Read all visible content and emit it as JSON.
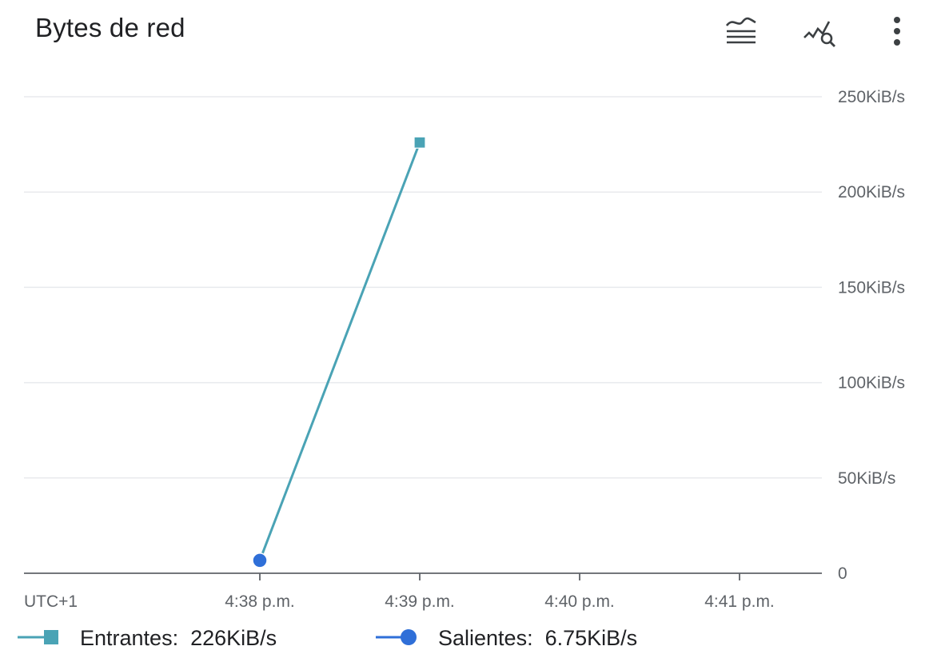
{
  "card": {
    "title": "Bytes de red",
    "toolbar": {
      "legend_icon": "legend-lines-icon",
      "explore_icon": "explore-chart-icon",
      "more_icon": "more-vert-icon"
    }
  },
  "chart_data": {
    "type": "line",
    "title": "Bytes de red",
    "xlabel": "",
    "ylabel": "",
    "timezone_label": "UTC+1",
    "x_ticks": [
      "4:38 p.m.",
      "4:39 p.m.",
      "4:40 p.m.",
      "4:41 p.m."
    ],
    "y_ticks": [
      "0",
      "50KiB/s",
      "100KiB/s",
      "150KiB/s",
      "200KiB/s",
      "250KiB/s"
    ],
    "y_tick_values": [
      0,
      50,
      100,
      150,
      200,
      250
    ],
    "ylim": [
      0,
      250
    ],
    "xlim": [
      "4:36:31 p.m.",
      "4:41:31 p.m."
    ],
    "grid": true,
    "legend_position": "bottom-left",
    "series": [
      {
        "name": "Entrantes",
        "legend_value": "226KiB/s",
        "color": "#4aa3b5",
        "marker": "square",
        "points": [
          {
            "x": "4:38 p.m.",
            "y": 6.75
          },
          {
            "x": "4:39 p.m.",
            "y": 226
          }
        ]
      },
      {
        "name": "Salientes",
        "legend_value": "6.75KiB/s",
        "color": "#2f6fd8",
        "marker": "circle",
        "points": [
          {
            "x": "4:38 p.m.",
            "y": 6.75
          }
        ]
      }
    ]
  }
}
